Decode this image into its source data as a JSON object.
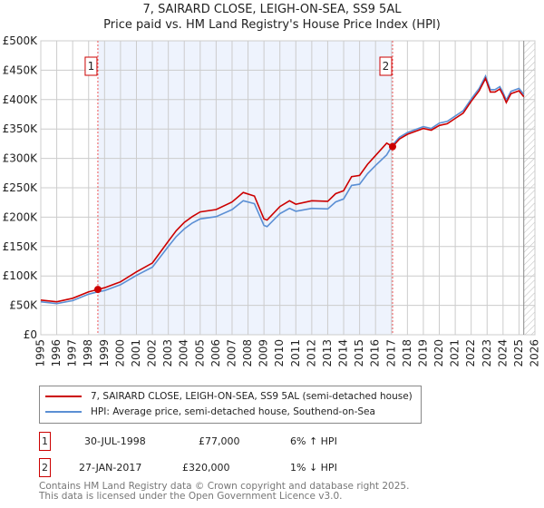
{
  "chart_data": {
    "type": "line",
    "title": "7, SAIRARD CLOSE, LEIGH-ON-SEA, SS9 5AL",
    "subtitle": "Price paid vs. HM Land Registry's House Price Index (HPI)",
    "xlim": [
      1995,
      2026
    ],
    "ylim": [
      0,
      500000
    ],
    "x_ticks": [
      "1995",
      "1996",
      "1997",
      "1998",
      "1999",
      "2000",
      "2001",
      "2002",
      "2003",
      "2004",
      "2005",
      "2006",
      "2007",
      "2008",
      "2009",
      "2010",
      "2011",
      "2012",
      "2013",
      "2014",
      "2015",
      "2016",
      "2017",
      "2018",
      "2019",
      "2020",
      "2021",
      "2022",
      "2023",
      "2024",
      "2025",
      "2026"
    ],
    "y_ticks": [
      {
        "v": 0,
        "label": "£0"
      },
      {
        "v": 50000,
        "label": "£50K"
      },
      {
        "v": 100000,
        "label": "£100K"
      },
      {
        "v": 150000,
        "label": "£150K"
      },
      {
        "v": 200000,
        "label": "£200K"
      },
      {
        "v": 250000,
        "label": "£250K"
      },
      {
        "v": 300000,
        "label": "£300K"
      },
      {
        "v": 350000,
        "label": "£350K"
      },
      {
        "v": 400000,
        "label": "£400K"
      },
      {
        "v": 450000,
        "label": "£450K"
      },
      {
        "v": 500000,
        "label": "£500K"
      }
    ],
    "grid": true,
    "x": [
      1995,
      1996,
      1997,
      1998,
      1998.58,
      1999,
      2000,
      2001,
      2002,
      2003,
      2003.5,
      2004,
      2004.5,
      2005,
      2006,
      2007,
      2007.7,
      2008.4,
      2009,
      2009.2,
      2010,
      2010.6,
      2011,
      2012,
      2013,
      2013.5,
      2014,
      2014.5,
      2015,
      2015.5,
      2016,
      2016.7,
      2017.07,
      2017.5,
      2018,
      2019,
      2019.5,
      2020,
      2020.5,
      2021,
      2021.5,
      2022,
      2022.5,
      2022.9,
      2023.2,
      2023.5,
      2023.8,
      2024,
      2024.2,
      2024.5,
      2025,
      2025.3
    ],
    "series": [
      {
        "name": "7, SAIRARD CLOSE, LEIGH-ON-SEA, SS9 5AL (semi-detached house)",
        "color": "#cc0000",
        "values_k": [
          59,
          56,
          62,
          73,
          77,
          80,
          90,
          107,
          122,
          159,
          177,
          191,
          201,
          209,
          213,
          226,
          242,
          236,
          197,
          195,
          218,
          228,
          222,
          228,
          227,
          240,
          245,
          269,
          271,
          290,
          305,
          326,
          320,
          333,
          341,
          351,
          348,
          356,
          359,
          368,
          377,
          397,
          415,
          436,
          413,
          413,
          418,
          408,
          395,
          410,
          415,
          405
        ]
      },
      {
        "name": "HPI: Average price, semi-detached house, Southend-on-Sea",
        "color": "#5b8fd4",
        "values_k": [
          56,
          53,
          58,
          69,
          73,
          75,
          85,
          101,
          115,
          150,
          167,
          180,
          190,
          197,
          201,
          213,
          228,
          223,
          186,
          184,
          206,
          215,
          210,
          215,
          214,
          226,
          231,
          254,
          256,
          274,
          288,
          306,
          323,
          336,
          344,
          354,
          351,
          360,
          363,
          372,
          381,
          401,
          419,
          440,
          417,
          417,
          422,
          412,
          399,
          414,
          419,
          409
        ]
      }
    ],
    "shaded_range": [
      1998.58,
      2017.07
    ],
    "forecast_from": 2025.3,
    "sales": [
      {
        "id": "1",
        "x": 1998.58,
        "value": 77000,
        "date": "30-JUL-1998",
        "price": "£77,000",
        "hpi_diff": "6% ↑ HPI"
      },
      {
        "id": "2",
        "x": 2017.07,
        "value": 320000,
        "date": "27-JAN-2017",
        "price": "£320,000",
        "hpi_diff": "1% ↓ HPI"
      }
    ]
  },
  "footer": {
    "line1": "Contains HM Land Registry data © Crown copyright and database right 2025.",
    "line2": "This data is licensed under the Open Government Licence v3.0."
  }
}
